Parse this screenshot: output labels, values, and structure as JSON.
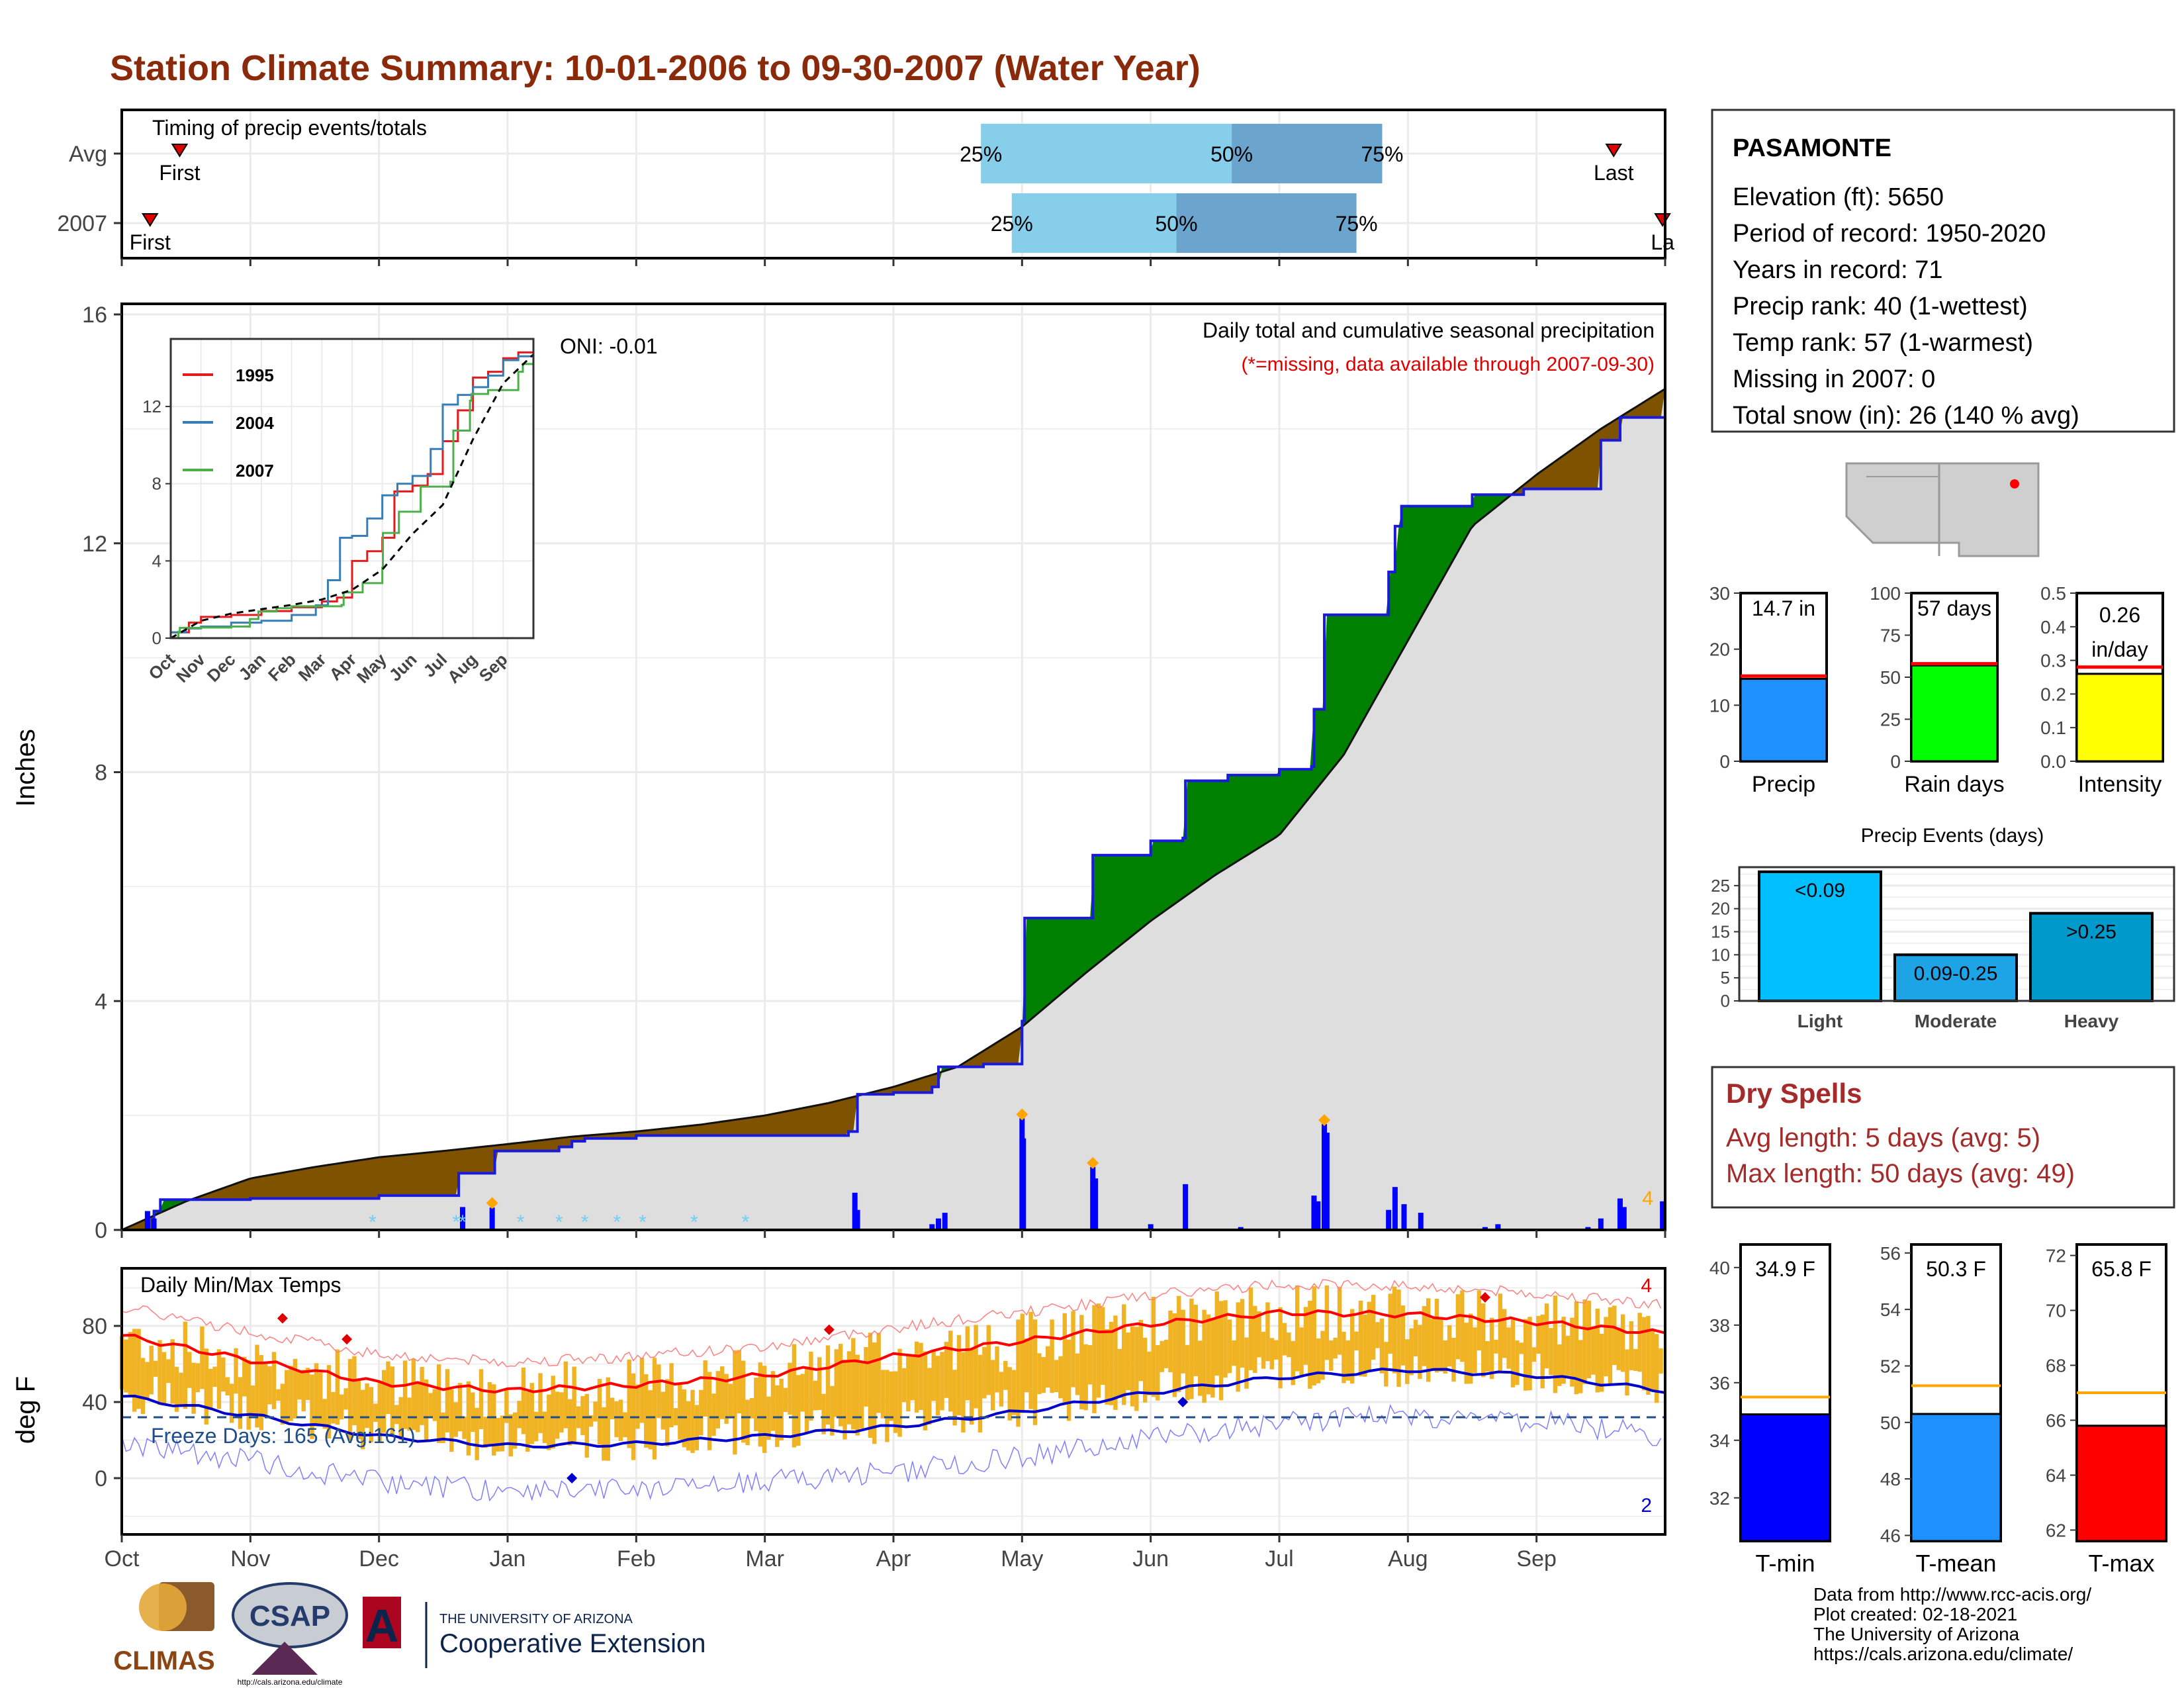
{
  "title": "Station Climate Summary: 10-01-2006 to 09-30-2007 (Water Year)",
  "colors": {
    "title": "#8b2a0a",
    "above_avg": "#008000",
    "below_avg": "#7f5200",
    "cum_fill": "#dedede",
    "precip_bar": "#0000ff",
    "tmax_line": "#ff0000",
    "tmin_line": "#0000cc",
    "temp_bar": "#f0b323",
    "timing_light": "#87ceeb",
    "timing_dark": "#6ba4cc",
    "dry_spells": "#a52a2a"
  },
  "timing_panel": {
    "title": "Timing of precip events/totals",
    "rows": [
      "Avg",
      "2007"
    ],
    "markers": [
      {
        "row": "Avg",
        "label": "First",
        "month_pos": 0.45
      },
      {
        "row": "Avg",
        "label": "Last",
        "month_pos": 11.6
      },
      {
        "row": "2007",
        "label": "First",
        "month_pos": 0.22
      },
      {
        "row": "2007",
        "label": "La",
        "month_pos": 11.98
      }
    ],
    "quartiles": [
      {
        "row": "Avg",
        "q25": 6.68,
        "q50": 8.63,
        "q75": 9.8,
        "labels": [
          "25%",
          "50%",
          "75%"
        ]
      },
      {
        "row": "2007",
        "q25": 6.92,
        "q50": 8.2,
        "q75": 9.6,
        "labels": [
          "25%",
          "50%",
          "75%"
        ]
      }
    ]
  },
  "precip_panel": {
    "ylabel": "Inches",
    "yticks": [
      "0",
      "4",
      "8",
      "12",
      "16"
    ],
    "oni": "ONI: -0.01",
    "subtitle": "Daily total and cumulative seasonal precipitation",
    "missing_note": "(*=missing, data available through 2007-09-30)",
    "max_count_label": "4"
  },
  "inset": {
    "yticks": [
      "0",
      "4",
      "8",
      "12"
    ],
    "months": [
      "Oct",
      "Nov",
      "Dec",
      "Jan",
      "Feb",
      "Mar",
      "Apr",
      "May",
      "Jun",
      "Jul",
      "Aug",
      "Sep"
    ],
    "legend": [
      {
        "name": "1995",
        "color": "#e41a1c"
      },
      {
        "name": "2004",
        "color": "#377eb8"
      },
      {
        "name": "2007",
        "color": "#4daf4a"
      }
    ]
  },
  "temp_panel": {
    "ylabel": "deg F",
    "title": "Daily Min/Max Temps",
    "yticks": [
      "0",
      "40",
      "80"
    ],
    "freeze_text": "Freeze Days: 165 (Avg:161)",
    "record_high_count": "4",
    "record_low_count": "2"
  },
  "x_months": [
    "Oct",
    "Nov",
    "Dec",
    "Jan",
    "Feb",
    "Mar",
    "Apr",
    "May",
    "Jun",
    "Jul",
    "Aug",
    "Sep"
  ],
  "station": {
    "name": "PASAMONTE",
    "lines": [
      "Elevation (ft): 5650",
      "Period of record: 1950-2020",
      "Years in record: 71",
      "Precip rank: 40 (1-wettest)",
      "Temp rank: 57 (1-warmest)",
      "Missing in 2007: 0",
      "Total snow (in): 26 (140 % avg)"
    ]
  },
  "summary_bars": [
    {
      "name": "Precip",
      "label": "14.7 in",
      "value": 14.7,
      "avg": 15.2,
      "ymin": 0,
      "ymax": 30,
      "ticks": [
        "0",
        "10",
        "20",
        "30"
      ],
      "color": "#1e90ff"
    },
    {
      "name": "Rain days",
      "label": "57 days",
      "value": 57,
      "avg": 58,
      "ymin": 0,
      "ymax": 100,
      "ticks": [
        "0",
        "25",
        "50",
        "75",
        "100"
      ],
      "color": "#00ff00"
    },
    {
      "name": "Intensity",
      "label": "0.26 in/day",
      "label_lines": [
        "0.26",
        "in/day"
      ],
      "value": 0.26,
      "avg": 0.28,
      "ymin": 0,
      "ymax": 0.5,
      "ticks": [
        "0.0",
        "0.1",
        "0.2",
        "0.3",
        "0.4",
        "0.5"
      ],
      "color": "#ffff00"
    }
  ],
  "precip_events": {
    "title": "Precip Events (days)",
    "yticks": [
      "0",
      "5",
      "10",
      "15",
      "20",
      "25"
    ],
    "bars": [
      {
        "category": "Light",
        "label": "<0.09",
        "value": 28,
        "color": "#00bfff"
      },
      {
        "category": "Moderate",
        "label": "0.09-0.25",
        "value": 10,
        "color": "#1ca4e6"
      },
      {
        "category": "Heavy",
        "label": ">0.25",
        "value": 19,
        "color": "#0099cc"
      }
    ]
  },
  "dry_spells": {
    "title": "Dry Spells",
    "avg_length": "Avg length: 5 days (avg: 5)",
    "max_length": "Max length: 50 days (avg: 49)"
  },
  "temp_bars": [
    {
      "name": "T-min",
      "label": "34.9 F",
      "value": 34.9,
      "avg": 35.5,
      "ymin": 30.5,
      "ymax": 40.8,
      "ticks": [
        "32",
        "34",
        "36",
        "38",
        "40"
      ],
      "color": "#0000ff"
    },
    {
      "name": "T-mean",
      "label": "50.3 F",
      "value": 50.3,
      "avg": 51.3,
      "ymin": 45.8,
      "ymax": 56.3,
      "ticks": [
        "46",
        "48",
        "50",
        "52",
        "54",
        "56"
      ],
      "color": "#1e90ff"
    },
    {
      "name": "T-max",
      "label": "65.8 F",
      "value": 65.8,
      "avg": 67.0,
      "ymin": 61.6,
      "ymax": 72.4,
      "ticks": [
        "62",
        "64",
        "66",
        "68",
        "70",
        "72"
      ],
      "color": "#ff0000"
    }
  ],
  "footer": {
    "lines": [
      "Data from http://www.rcc-acis.org/",
      "Plot created: 02-18-2021",
      "The University of Arizona",
      "https://cals.arizona.edu/climate/"
    ]
  },
  "logos": {
    "climas": "CLIMAS",
    "csap": "CSAP",
    "csap_url": "http://cals.arizona.edu/climate",
    "ua_small": "THE UNIVERSITY OF ARIZONA",
    "ua_large": "Cooperative Extension"
  },
  "chart_data": [
    {
      "type": "area",
      "title": "Daily total and cumulative seasonal precipitation",
      "ylabel": "Inches",
      "ylim": [
        0,
        16
      ],
      "x_unit": "month of water year (0 = Oct 1)",
      "series": [
        {
          "name": "2007",
          "points": [
            [
              0.0,
              0.0
            ],
            [
              0.22,
              0.0
            ],
            [
              0.25,
              0.33
            ],
            [
              0.3,
              0.53
            ],
            [
              0.6,
              0.53
            ],
            [
              1.0,
              0.55
            ],
            [
              2.0,
              0.6
            ],
            [
              2.6,
              0.6
            ],
            [
              2.62,
              0.99
            ],
            [
              2.85,
              0.99
            ],
            [
              2.9,
              1.38
            ],
            [
              3.4,
              1.45
            ],
            [
              3.5,
              1.55
            ],
            [
              3.6,
              1.6
            ],
            [
              4.0,
              1.65
            ],
            [
              4.5,
              1.65
            ],
            [
              5.0,
              1.65
            ],
            [
              5.5,
              1.65
            ],
            [
              5.65,
              1.72
            ],
            [
              5.72,
              2.37
            ],
            [
              6.0,
              2.4
            ],
            [
              6.3,
              2.5
            ],
            [
              6.35,
              2.85
            ],
            [
              6.7,
              2.9
            ],
            [
              7.0,
              3.65
            ],
            [
              7.02,
              5.45
            ],
            [
              7.5,
              5.45
            ],
            [
              7.55,
              6.55
            ],
            [
              8.0,
              6.8
            ],
            [
              8.25,
              6.85
            ],
            [
              8.27,
              7.85
            ],
            [
              8.6,
              7.95
            ],
            [
              9.0,
              8.05
            ],
            [
              9.25,
              8.1
            ],
            [
              9.27,
              9.1
            ],
            [
              9.35,
              10.75
            ],
            [
              9.8,
              10.75
            ],
            [
              9.85,
              11.5
            ],
            [
              9.9,
              12.3
            ],
            [
              9.95,
              12.65
            ],
            [
              10.35,
              12.65
            ],
            [
              10.5,
              12.85
            ],
            [
              10.9,
              12.95
            ],
            [
              11.3,
              12.95
            ],
            [
              11.5,
              13.8
            ],
            [
              11.65,
              14.2
            ],
            [
              11.98,
              14.2
            ],
            [
              12.0,
              14.7
            ]
          ]
        },
        {
          "name": "Avg",
          "points": [
            [
              0.0,
              0.0
            ],
            [
              0.5,
              0.5
            ],
            [
              1.0,
              0.9
            ],
            [
              1.5,
              1.1
            ],
            [
              2.0,
              1.27
            ],
            [
              2.5,
              1.38
            ],
            [
              3.0,
              1.5
            ],
            [
              3.5,
              1.63
            ],
            [
              4.0,
              1.72
            ],
            [
              4.5,
              1.84
            ],
            [
              5.0,
              2.0
            ],
            [
              5.5,
              2.22
            ],
            [
              6.0,
              2.5
            ],
            [
              6.5,
              2.85
            ],
            [
              7.0,
              3.55
            ],
            [
              7.5,
              4.5
            ],
            [
              8.0,
              5.4
            ],
            [
              8.5,
              6.2
            ],
            [
              9.0,
              6.9
            ],
            [
              9.5,
              8.3
            ],
            [
              10.0,
              10.3
            ],
            [
              10.5,
              12.3
            ],
            [
              11.0,
              13.2
            ],
            [
              11.5,
              14.0
            ],
            [
              12.0,
              14.7
            ]
          ]
        }
      ],
      "daily_precip_events": [
        [
          0.2,
          0.33
        ],
        [
          0.25,
          0.2
        ],
        [
          2.65,
          0.4
        ],
        [
          2.88,
          0.39
        ],
        [
          5.7,
          0.65
        ],
        [
          5.72,
          0.35
        ],
        [
          6.3,
          0.1
        ],
        [
          6.35,
          0.2
        ],
        [
          6.4,
          0.3
        ],
        [
          7.0,
          1.95
        ],
        [
          7.01,
          1.6
        ],
        [
          7.55,
          1.1
        ],
        [
          7.57,
          0.9
        ],
        [
          8.0,
          0.1
        ],
        [
          8.27,
          0.8
        ],
        [
          8.7,
          0.05
        ],
        [
          9.27,
          0.6
        ],
        [
          9.3,
          0.5
        ],
        [
          9.35,
          1.85
        ],
        [
          9.37,
          1.7
        ],
        [
          9.85,
          0.35
        ],
        [
          9.9,
          0.75
        ],
        [
          9.97,
          0.45
        ],
        [
          10.1,
          0.3
        ],
        [
          10.6,
          0.05
        ],
        [
          10.7,
          0.1
        ],
        [
          11.4,
          0.05
        ],
        [
          11.5,
          0.2
        ],
        [
          11.65,
          0.55
        ],
        [
          11.68,
          0.4
        ],
        [
          11.98,
          0.5
        ]
      ]
    },
    {
      "type": "line",
      "title": "Daily Min/Max Temps",
      "ylabel": "deg F",
      "ylim": [
        -27,
        103
      ],
      "x_unit": "month of water year (0 = Oct 1)",
      "series": [
        {
          "name": "avg max",
          "points": [
            [
              0,
              75
            ],
            [
              1,
              62
            ],
            [
              2,
              50
            ],
            [
              3,
              46
            ],
            [
              4,
              49
            ],
            [
              5,
              54
            ],
            [
              6,
              64
            ],
            [
              7,
              72
            ],
            [
              8,
              81
            ],
            [
              9,
              87
            ],
            [
              10,
              86
            ],
            [
              11,
              82
            ],
            [
              12,
              76
            ]
          ]
        },
        {
          "name": "avg min",
          "points": [
            [
              0,
              43
            ],
            [
              1,
              33
            ],
            [
              2,
              22
            ],
            [
              3,
              17
            ],
            [
              4,
              18
            ],
            [
              5,
              22
            ],
            [
              6,
              27
            ],
            [
              7,
              35
            ],
            [
              8,
              45
            ],
            [
              9,
              53
            ],
            [
              10,
              57
            ],
            [
              11,
              54
            ],
            [
              12,
              46
            ]
          ]
        }
      ],
      "freeze_line": 32,
      "annotations": [
        "Freeze Days: 165 (Avg:161)"
      ]
    },
    {
      "type": "line",
      "title": "inset cumulative precip",
      "series_names": [
        "1995",
        "2004",
        "2007"
      ],
      "ylim": [
        0,
        15.5
      ],
      "x_unit": "month"
    },
    {
      "type": "bar",
      "categories": [
        "Precip",
        "Rain days",
        "Intensity"
      ],
      "values": [
        14.7,
        57,
        0.26
      ]
    },
    {
      "type": "bar",
      "title": "Precip Events (days)",
      "categories": [
        "Light",
        "Moderate",
        "Heavy"
      ],
      "values": [
        28,
        10,
        19
      ]
    },
    {
      "type": "bar",
      "categories": [
        "T-min",
        "T-mean",
        "T-max"
      ],
      "values": [
        34.9,
        50.3,
        65.8
      ]
    }
  ]
}
